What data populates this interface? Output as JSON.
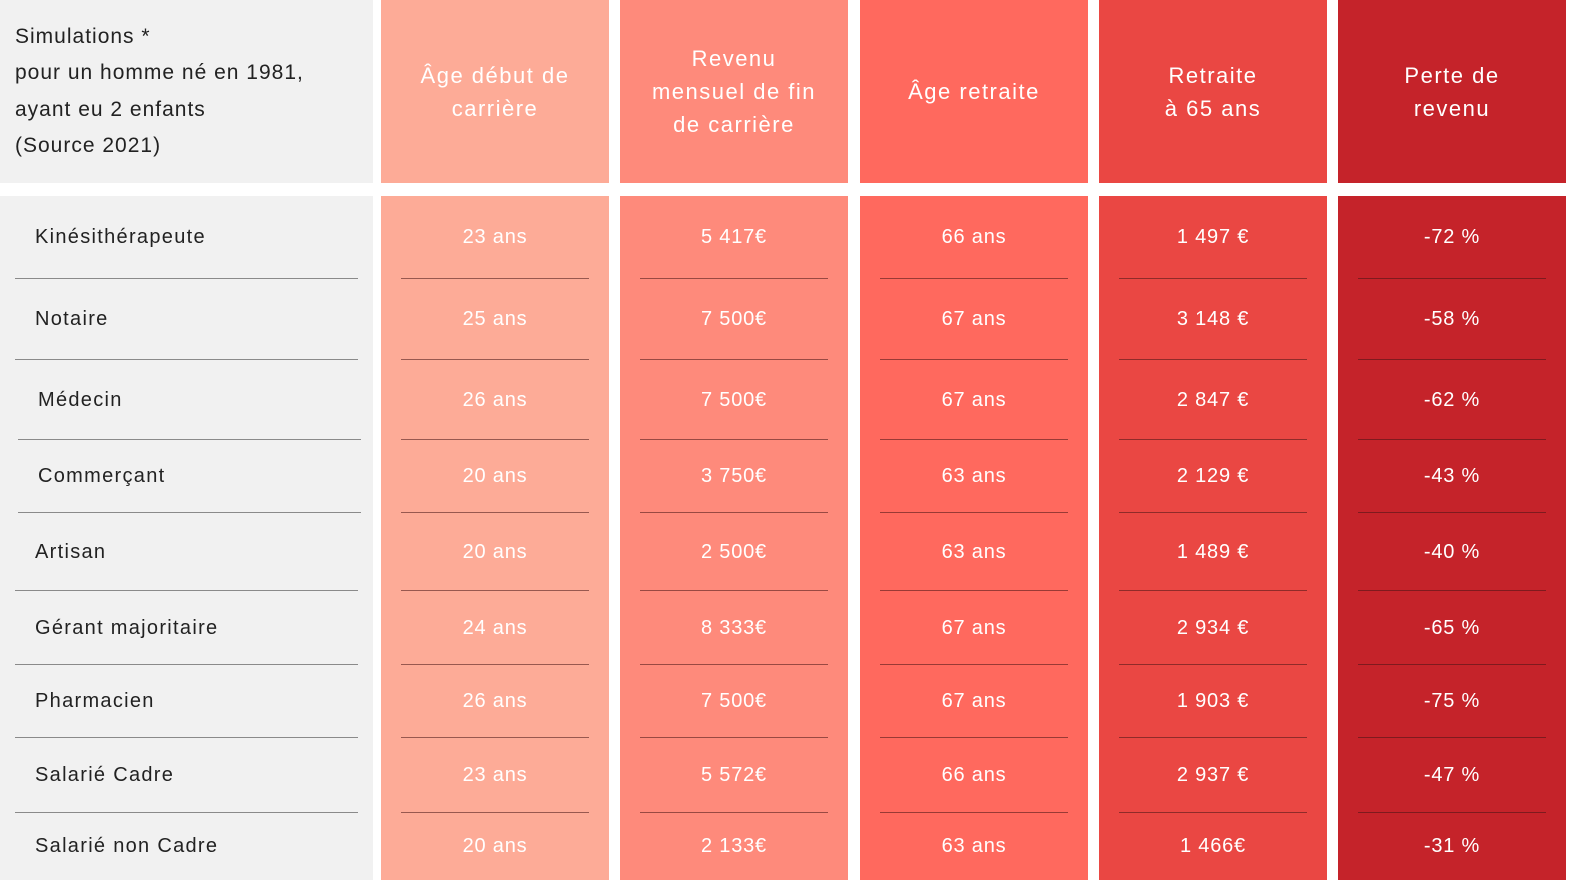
{
  "header": {
    "caption": "Simulations *\npour un homme né en 1981,\nayant eu 2 enfants\n(Source 2021)",
    "columns": [
      {
        "label": "Âge début de\ncarrière",
        "color": "#fdab97"
      },
      {
        "label": "Revenu\nmensuel de fin\nde carrière",
        "color": "#fe8a7b"
      },
      {
        "label": "Âge retraite",
        "color": "#ff695e"
      },
      {
        "label": "Retraite\nà 65 ans",
        "color": "#ea4743"
      },
      {
        "label": "Perte de\nrevenu",
        "color": "#c5232a"
      }
    ]
  },
  "colors": {
    "label_background": "#f1f1f1"
  },
  "rows": [
    {
      "profession": "Kinésithérapeute",
      "age_debut": "23 ans",
      "revenu": "5 417€",
      "age_retraite": "66 ans",
      "retraite_65": "1 497 €",
      "perte": "-72 %"
    },
    {
      "profession": "Notaire",
      "age_debut": "25 ans",
      "revenu": "7 500€",
      "age_retraite": "67 ans",
      "retraite_65": "3 148 €",
      "perte": "-58 %"
    },
    {
      "profession": "Médecin",
      "age_debut": "26 ans",
      "revenu": "7 500€",
      "age_retraite": "67 ans",
      "retraite_65": "2 847 €",
      "perte": "-62 %"
    },
    {
      "profession": "Commerçant",
      "age_debut": "20 ans",
      "revenu": "3 750€",
      "age_retraite": "63 ans",
      "retraite_65": "2 129 €",
      "perte": "-43 %"
    },
    {
      "profession": "Artisan",
      "age_debut": "20 ans",
      "revenu": "2 500€",
      "age_retraite": "63 ans",
      "retraite_65": "1 489 €",
      "perte": "-40 %"
    },
    {
      "profession": "Gérant majoritaire",
      "age_debut": "24 ans",
      "revenu": "8 333€",
      "age_retraite": "67 ans",
      "retraite_65": "2 934 €",
      "perte": "-65 %"
    },
    {
      "profession": "Pharmacien",
      "age_debut": "26 ans",
      "revenu": "7 500€",
      "age_retraite": "67 ans",
      "retraite_65": "1 903 €",
      "perte": "-75 %"
    },
    {
      "profession": "Salarié Cadre",
      "age_debut": "23 ans",
      "revenu": "5 572€",
      "age_retraite": "66 ans",
      "retraite_65": "2 937 €",
      "perte": "-47 %"
    },
    {
      "profession": "Salarié non Cadre",
      "age_debut": "20 ans",
      "revenu": "2 133€",
      "age_retraite": "63 ans",
      "retraite_65": "1 466€",
      "perte": "-31 %"
    }
  ]
}
